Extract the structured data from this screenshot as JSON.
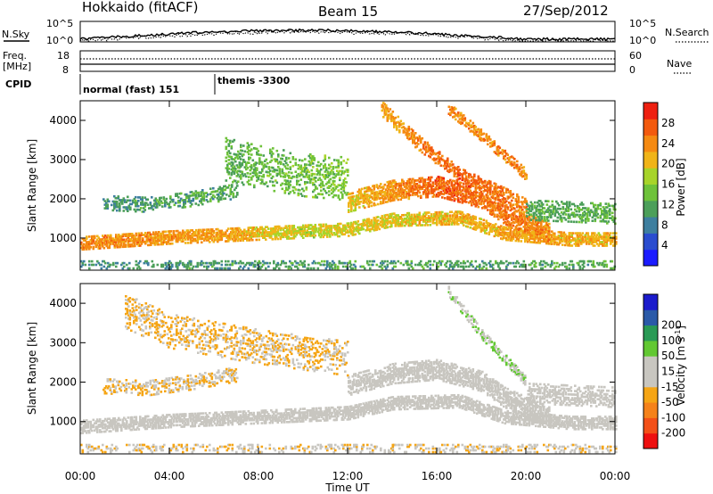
{
  "header": {
    "station": "Hokkaido (fitACF)",
    "beam": "Beam 15",
    "date": "27/Sep/2012"
  },
  "top_panels": {
    "nsky_label": "N.Sky",
    "nsky_ticks": [
      "10^5",
      "10^0"
    ],
    "nsearch_label": "N.Search",
    "nsearch_ticks": [
      "10^5",
      "10^0"
    ],
    "freq_label": "Freq.",
    "freq_unit": "[MHz]",
    "freq_ticks": [
      "18",
      "8"
    ],
    "nave_label": "Nave",
    "nave_ticks": [
      "60",
      "0"
    ],
    "cpid_label": "CPID",
    "cpid_segments": [
      {
        "label": "normal (fast) 151",
        "start_hour": 0,
        "end_hour": 6.1
      },
      {
        "label": "themis -3300",
        "start_hour": 6.1,
        "end_hour": 24
      }
    ]
  },
  "chart_data": [
    {
      "type": "heatmap",
      "name": "power",
      "ylabel": "Slant Range [km]",
      "x_range_hours": [
        0,
        24
      ],
      "ylim": [
        180,
        4500
      ],
      "yticks": [
        1000,
        2000,
        3000,
        4000
      ],
      "colorbar": {
        "label": "Power [dB]",
        "ticks": [
          4,
          8,
          12,
          16,
          20,
          24,
          28
        ],
        "range": [
          0,
          32
        ],
        "colors": [
          "#1b1bff",
          "#2a4ccf",
          "#3e7f9f",
          "#4c9f5a",
          "#6ec23a",
          "#a7d42a",
          "#f0b418",
          "#f58a12",
          "#f35a0e",
          "#ee2010"
        ]
      },
      "bands": [
        {
          "t0": 0,
          "t1": 24,
          "r": [
            [
              0,
              850
            ],
            [
              4,
              1000
            ],
            [
              8,
              1100
            ],
            [
              12,
              1200
            ],
            [
              14,
              1450
            ],
            [
              17,
              1500
            ],
            [
              19,
              1100
            ],
            [
              22,
              950
            ],
            [
              24,
              950
            ]
          ],
          "w": 320,
          "v": [
            [
              0,
              24
            ],
            [
              6,
              23
            ],
            [
              10,
              18
            ],
            [
              14,
              20
            ],
            [
              20,
              22
            ],
            [
              24,
              21
            ]
          ],
          "d": 0.85
        },
        {
          "t0": 1,
          "t1": 7,
          "r": [
            [
              1,
              1900
            ],
            [
              3,
              1850
            ],
            [
              5,
              2000
            ],
            [
              7,
              2200
            ]
          ],
          "w": 400,
          "v": [
            [
              1,
              10
            ],
            [
              7,
              12
            ]
          ],
          "d": 0.45
        },
        {
          "t0": 6.5,
          "t1": 12,
          "r": [
            [
              6.5,
              3000
            ],
            [
              8,
              2800
            ],
            [
              10,
              2600
            ],
            [
              12,
              2500
            ]
          ],
          "w": 1100,
          "v": [
            [
              6.5,
              13
            ],
            [
              12,
              15
            ]
          ],
          "d": 0.35
        },
        {
          "t0": 12,
          "t1": 21,
          "r": [
            [
              12,
              1900
            ],
            [
              14,
              2200
            ],
            [
              16,
              2300
            ],
            [
              18,
              2000
            ],
            [
              19,
              1600
            ],
            [
              21,
              1100
            ]
          ],
          "w": 500,
          "v": [
            [
              12,
              20
            ],
            [
              16,
              27
            ],
            [
              21,
              24
            ]
          ],
          "d": 0.75
        },
        {
          "t0": 13.5,
          "t1": 20,
          "r": [
            [
              13.5,
              4300
            ],
            [
              15,
              3500
            ],
            [
              17,
              2600
            ],
            [
              19,
              2100
            ],
            [
              20,
              1800
            ]
          ],
          "w": 400,
          "v": [
            [
              13.5,
              22
            ],
            [
              17,
              27
            ],
            [
              20,
              24
            ]
          ],
          "d": 0.6
        },
        {
          "t0": 16.5,
          "t1": 20,
          "r": [
            [
              16.5,
              4300
            ],
            [
              18,
              3600
            ],
            [
              20,
              2600
            ]
          ],
          "w": 300,
          "v": [
            [
              16.5,
              24
            ],
            [
              20,
              24
            ]
          ],
          "d": 0.55
        },
        {
          "t0": 20,
          "t1": 24,
          "r": [
            [
              20,
              1700
            ],
            [
              24,
              1600
            ]
          ],
          "w": 500,
          "v": [
            [
              20,
              12
            ],
            [
              24,
              13
            ]
          ],
          "d": 0.55
        },
        {
          "t0": 0,
          "t1": 24,
          "r": [
            [
              0,
              320
            ],
            [
              24,
              320
            ]
          ],
          "w": 220,
          "v": [
            [
              0,
              10
            ],
            [
              24,
              12
            ]
          ],
          "d": 0.35
        }
      ]
    },
    {
      "type": "heatmap",
      "name": "velocity",
      "ylabel": "Slant Range [km]",
      "x_range_hours": [
        0,
        24
      ],
      "ylim": [
        180,
        4500
      ],
      "yticks": [
        1000,
        2000,
        3000,
        4000
      ],
      "colorbar": {
        "label": "Velocity [m s",
        "label_sup": "-1",
        "label_end": "]",
        "ticks": [
          -200,
          -100,
          -50,
          -15,
          15,
          50,
          100,
          200
        ],
        "range": [
          -250,
          250
        ],
        "colors": [
          "#ee1010",
          "#f35018",
          "#f5821a",
          "#f5a515",
          "#c8c6c0",
          "#c8c6c0",
          "#62c832",
          "#2a9a55",
          "#2b5aa8",
          "#1b1bcc"
        ]
      },
      "bands": [
        {
          "t0": 0,
          "t1": 24,
          "r": [
            [
              0,
              850
            ],
            [
              4,
              1000
            ],
            [
              8,
              1100
            ],
            [
              12,
              1200
            ],
            [
              14,
              1450
            ],
            [
              17,
              1500
            ],
            [
              19,
              1100
            ],
            [
              22,
              950
            ],
            [
              24,
              950
            ]
          ],
          "w": 320,
          "v": [
            [
              0,
              0
            ],
            [
              24,
              0
            ]
          ],
          "d": 0.85
        },
        {
          "t0": 1,
          "t1": 7,
          "r": [
            [
              1,
              1900
            ],
            [
              3,
              1850
            ],
            [
              5,
              2000
            ],
            [
              7,
              2200
            ]
          ],
          "w": 400,
          "v": [
            [
              1,
              -60
            ],
            [
              7,
              -40
            ]
          ],
          "d": 0.45
        },
        {
          "t0": 2,
          "t1": 12,
          "r": [
            [
              2,
              3800
            ],
            [
              4,
              3300
            ],
            [
              8,
              2900
            ],
            [
              12,
              2600
            ]
          ],
          "w": 900,
          "v": [
            [
              2,
              -60
            ],
            [
              12,
              -50
            ]
          ],
          "d": 0.3
        },
        {
          "t0": 12,
          "t1": 21,
          "r": [
            [
              12,
              1900
            ],
            [
              14,
              2200
            ],
            [
              16,
              2300
            ],
            [
              18,
              2000
            ],
            [
              19,
              1600
            ],
            [
              21,
              1100
            ]
          ],
          "w": 500,
          "v": [
            [
              12,
              0
            ],
            [
              21,
              0
            ]
          ],
          "d": 0.75
        },
        {
          "t0": 16.5,
          "t1": 20,
          "r": [
            [
              16.5,
              4300
            ],
            [
              18,
              3200
            ],
            [
              20,
              2000
            ]
          ],
          "w": 250,
          "v": [
            [
              16.5,
              45
            ],
            [
              20,
              45
            ]
          ],
          "d": 0.6
        },
        {
          "t0": 20,
          "t1": 24,
          "r": [
            [
              20,
              1700
            ],
            [
              24,
              1600
            ]
          ],
          "w": 500,
          "v": [
            [
              20,
              0
            ],
            [
              24,
              0
            ]
          ],
          "d": 0.55
        },
        {
          "t0": 0,
          "t1": 24,
          "r": [
            [
              0,
              320
            ],
            [
              24,
              320
            ]
          ],
          "w": 220,
          "v": [
            [
              0,
              -40
            ],
            [
              24,
              -30
            ]
          ],
          "d": 0.3
        }
      ]
    }
  ],
  "x_axis": {
    "label": "Time UT",
    "tick_labels": [
      "00:00",
      "04:00",
      "08:00",
      "12:00",
      "16:00",
      "20:00",
      "00:00"
    ]
  }
}
